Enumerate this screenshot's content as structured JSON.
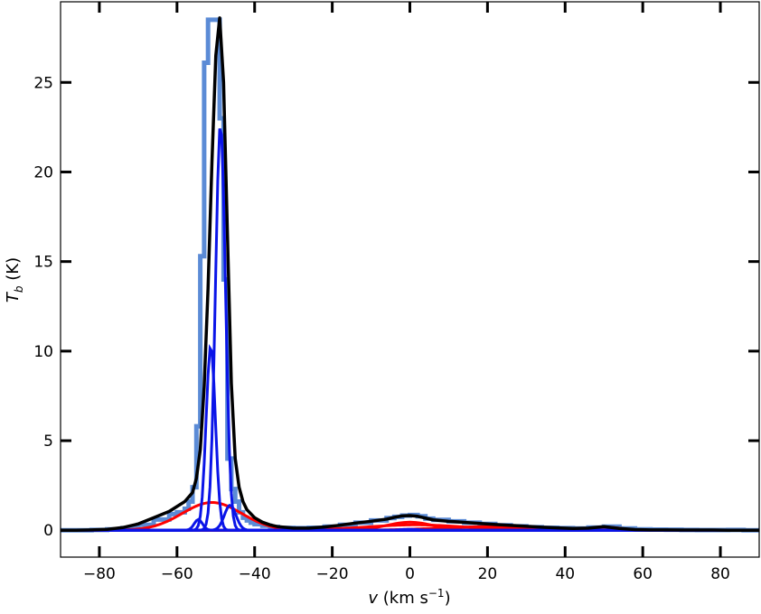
{
  "chart_data": {
    "type": "line",
    "xlabel_var": "v",
    "xlabel_unit_pre": " (km s",
    "xlabel_unit_exp": "−1",
    "xlabel_unit_post": ")",
    "ylabel_var": "T",
    "ylabel_sub": "b",
    "ylabel_unit": " (K)",
    "xlim": [
      -90,
      90
    ],
    "ylim": [
      -1.5,
      29.5
    ],
    "x_ticks": [
      -80,
      -60,
      -40,
      -20,
      0,
      20,
      40,
      60,
      80
    ],
    "x_tick_labels": [
      "−80",
      "−60",
      "−40",
      "−20",
      "0",
      "20",
      "40",
      "60",
      "80"
    ],
    "y_ticks": [
      0,
      5,
      10,
      15,
      20,
      25
    ],
    "y_tick_labels": [
      "0",
      "5",
      "10",
      "15",
      "20",
      "25"
    ],
    "grid": false,
    "observed_spectrum": {
      "color": "#5b8bd6",
      "x": [
        -90,
        -86,
        -82,
        -78,
        -74,
        -70,
        -66,
        -62,
        -60,
        -58,
        -57,
        -56,
        -55,
        -54,
        -53,
        -52,
        -51,
        -50,
        -49,
        -48,
        -47,
        -46,
        -45,
        -44,
        -43,
        -42,
        -41,
        -40,
        -38,
        -36,
        -34,
        -30,
        -26,
        -22,
        -18,
        -14,
        -10,
        -6,
        -4,
        -2,
        0,
        2,
        4,
        6,
        10,
        14,
        18,
        22,
        26,
        30,
        34,
        38,
        42,
        46,
        50,
        54,
        58,
        62,
        66,
        70,
        74,
        78,
        82,
        86,
        90
      ],
      "y": [
        0.0,
        0.0,
        0.02,
        0.05,
        0.12,
        0.3,
        0.6,
        0.9,
        1.0,
        1.2,
        1.6,
        2.4,
        5.8,
        15.3,
        26.1,
        28.5,
        28.5,
        28.5,
        23.0,
        14.0,
        4.0,
        2.3,
        1.6,
        1.0,
        0.7,
        0.55,
        0.42,
        0.34,
        0.25,
        0.18,
        0.13,
        0.12,
        0.14,
        0.2,
        0.3,
        0.42,
        0.55,
        0.68,
        0.75,
        0.82,
        0.85,
        0.78,
        0.65,
        0.58,
        0.5,
        0.42,
        0.35,
        0.28,
        0.22,
        0.17,
        0.14,
        0.12,
        0.1,
        0.15,
        0.2,
        0.1,
        0.05,
        0.04,
        0.03,
        0.02,
        0.01,
        0.01,
        0.02,
        0.0,
        0.0
      ]
    },
    "cold_components": {
      "color": "#0a14e8",
      "gaussians": [
        {
          "amp": 10.3,
          "center": -51.3,
          "fwhm": 2.8
        },
        {
          "amp": 22.7,
          "center": -48.8,
          "fwhm": 3.0
        },
        {
          "amp": 1.4,
          "center": -46.3,
          "fwhm": 3.5
        },
        {
          "amp": 0.6,
          "center": -54.5,
          "fwhm": 2.5
        },
        {
          "amp": 0.05,
          "center": 0.0,
          "fwhm": 6.0
        }
      ]
    },
    "warm_components": {
      "color": "#ff0000",
      "gaussians": [
        {
          "amp": 1.55,
          "center": -51.0,
          "fwhm": 18.0
        },
        {
          "amp": 0.45,
          "center": 0.0,
          "fwhm": 14.0
        },
        {
          "amp": 0.3,
          "center": 1.5,
          "fwhm": 30.0
        },
        {
          "amp": 0.2,
          "center": 20.0,
          "fwhm": 30.0
        },
        {
          "amp": 0.18,
          "center": 50.0,
          "fwhm": 10.0
        }
      ]
    },
    "total_fit": {
      "color": "#000000",
      "x": [
        -90,
        -86,
        -82,
        -78,
        -74,
        -70,
        -66,
        -62,
        -58,
        -56,
        -55,
        -54,
        -53,
        -52,
        -51,
        -50,
        -49,
        -48,
        -47,
        -46,
        -45,
        -44,
        -43,
        -42,
        -40,
        -38,
        -36,
        -34,
        -30,
        -26,
        -22,
        -18,
        -14,
        -10,
        -6,
        -4,
        -2,
        0,
        2,
        4,
        6,
        10,
        14,
        18,
        22,
        26,
        30,
        34,
        38,
        42,
        46,
        50,
        54,
        58,
        62,
        66,
        70,
        74,
        78,
        82,
        86,
        90
      ],
      "y": [
        0.0,
        0.0,
        0.02,
        0.05,
        0.15,
        0.35,
        0.7,
        1.05,
        1.6,
        2.1,
        2.9,
        4.5,
        8.0,
        13.5,
        20.5,
        26.5,
        28.6,
        25.0,
        16.5,
        8.2,
        4.0,
        2.4,
        1.6,
        1.15,
        0.7,
        0.45,
        0.3,
        0.2,
        0.12,
        0.12,
        0.18,
        0.28,
        0.4,
        0.5,
        0.62,
        0.72,
        0.8,
        0.82,
        0.78,
        0.68,
        0.58,
        0.5,
        0.44,
        0.38,
        0.32,
        0.27,
        0.22,
        0.17,
        0.13,
        0.1,
        0.12,
        0.2,
        0.1,
        0.04,
        0.02,
        0.02,
        0.01,
        0.01,
        0.01,
        0.0,
        0.0,
        0.0
      ]
    }
  }
}
